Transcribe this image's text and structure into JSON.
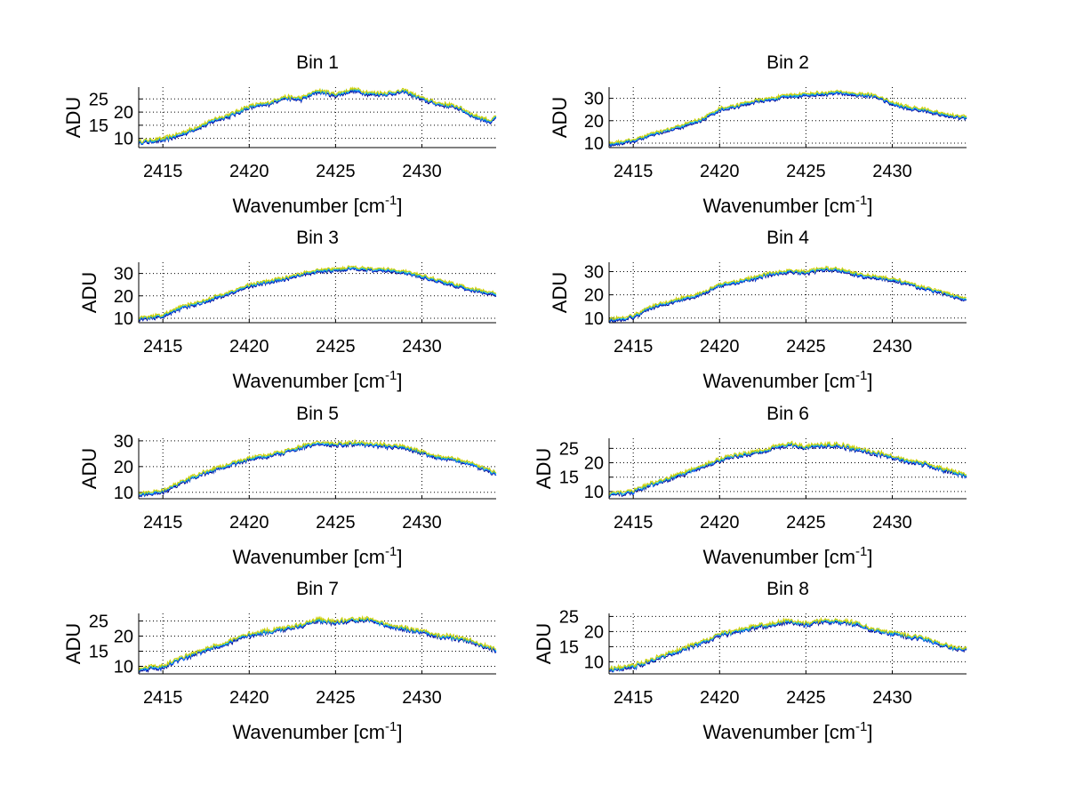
{
  "chart_data": {
    "type": "line",
    "layout": "4 rows x 2 columns",
    "xlabel": "Wavenumber [cm",
    "xlabel_sup": "-1",
    "xlabel_close": "]",
    "ylabel": "ADU",
    "xlim": [
      2413.6,
      2434.3
    ],
    "xticks": [
      2415,
      2420,
      2425,
      2430
    ],
    "grid": true,
    "series_colors": [
      "#00008f",
      "#0060ff",
      "#20c0c0",
      "#d0d000"
    ],
    "envelope_x": [
      2413.6,
      2415,
      2416,
      2417,
      2418,
      2419,
      2420,
      2421,
      2422,
      2423,
      2424,
      2425,
      2426,
      2427,
      2428,
      2429,
      2430,
      2431,
      2432,
      2433,
      2434,
      2434.3
    ],
    "panels": [
      {
        "title": "Bin 1",
        "ylim": [
          6.5,
          29.5
        ],
        "yticks": [
          10,
          15,
          20,
          25
        ],
        "values": [
          8,
          9,
          11,
          13.5,
          16.5,
          18.5,
          21.5,
          22.5,
          25,
          24.5,
          27.5,
          26,
          28,
          26.5,
          26.5,
          27.5,
          24.5,
          22.5,
          21.5,
          18,
          16,
          17.5
        ]
      },
      {
        "title": "Bin 2",
        "ylim": [
          8,
          35
        ],
        "yticks": [
          10,
          20,
          30
        ],
        "values": [
          9,
          10.5,
          13,
          15,
          17.5,
          20,
          24.5,
          26,
          28,
          29,
          30.5,
          31,
          31.5,
          32,
          31,
          30.5,
          27,
          25,
          24,
          22,
          21,
          21
        ]
      },
      {
        "title": "Bin 3",
        "ylim": [
          8,
          35
        ],
        "yticks": [
          10,
          20,
          30
        ],
        "values": [
          9,
          10.5,
          14,
          16,
          18.5,
          21,
          24,
          25.5,
          27,
          29,
          30.5,
          31,
          32,
          31,
          31,
          30,
          28,
          26,
          24,
          22,
          20.5,
          20
        ]
      },
      {
        "title": "Bin 4",
        "ylim": [
          8,
          34
        ],
        "yticks": [
          10,
          20,
          30
        ],
        "values": [
          8.5,
          10,
          14,
          16,
          18,
          20,
          23.5,
          25,
          26.5,
          28.5,
          29.5,
          29,
          30.5,
          30,
          28,
          27,
          26,
          24,
          22,
          20,
          18,
          17.5
        ]
      },
      {
        "title": "Bin 5",
        "ylim": [
          7.5,
          31
        ],
        "yticks": [
          10,
          20,
          30
        ],
        "values": [
          8.5,
          10,
          13,
          16,
          18.5,
          20.5,
          22.5,
          23.5,
          25,
          27,
          28.5,
          28,
          28.5,
          28,
          27.5,
          27,
          25,
          23,
          22,
          20,
          17.5,
          17
        ]
      },
      {
        "title": "Bin 6",
        "ylim": [
          7.5,
          28.5
        ],
        "yticks": [
          10,
          15,
          20,
          25
        ],
        "values": [
          8.5,
          9.5,
          12,
          14,
          16,
          18.5,
          20.5,
          22,
          23,
          24.5,
          26,
          25,
          25.5,
          25.5,
          24,
          23,
          21.5,
          20,
          19,
          17,
          15.5,
          15
        ]
      },
      {
        "title": "Bin 7",
        "ylim": [
          7.5,
          27.5
        ],
        "yticks": [
          10,
          15,
          20,
          25
        ],
        "values": [
          8.5,
          9.5,
          12,
          14,
          16,
          18,
          20,
          21,
          22,
          23,
          25,
          24,
          25,
          25,
          23,
          22,
          21,
          19.5,
          19,
          17.5,
          15.5,
          15
        ]
      },
      {
        "title": "Bin 8",
        "ylim": [
          6,
          26
        ],
        "yticks": [
          10,
          15,
          20,
          25
        ],
        "values": [
          7,
          8,
          10,
          12,
          14,
          16,
          18.5,
          19.5,
          21,
          22,
          23,
          22,
          23,
          23,
          22,
          20,
          19,
          18,
          17,
          15,
          13.5,
          14
        ]
      }
    ]
  }
}
